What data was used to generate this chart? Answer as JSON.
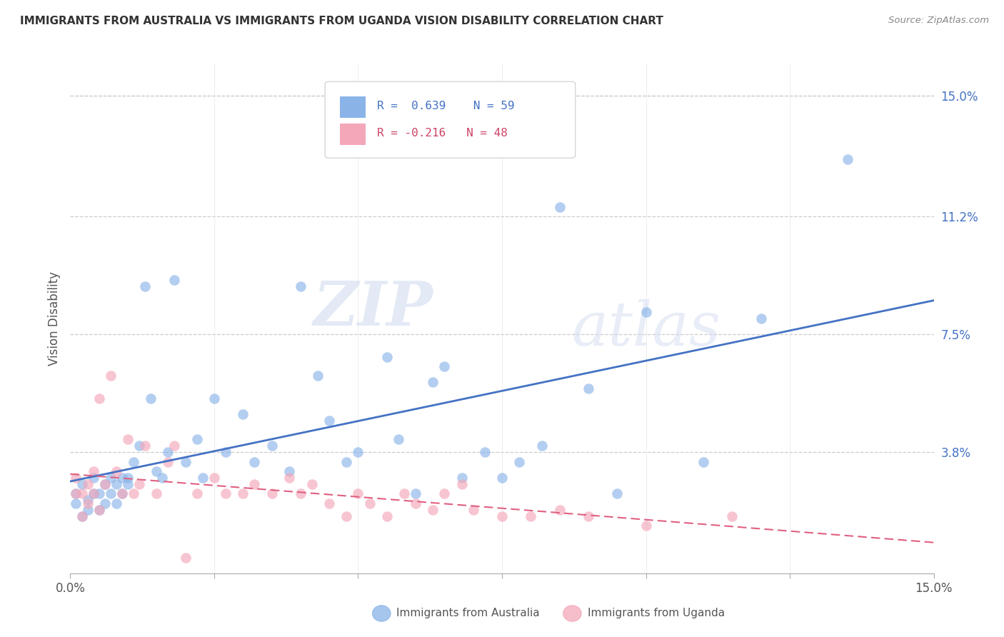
{
  "title": "IMMIGRANTS FROM AUSTRALIA VS IMMIGRANTS FROM UGANDA VISION DISABILITY CORRELATION CHART",
  "source": "Source: ZipAtlas.com",
  "ylabel": "Vision Disability",
  "ytick_labels": [
    "15.0%",
    "11.2%",
    "7.5%",
    "3.8%"
  ],
  "ytick_values": [
    0.15,
    0.112,
    0.075,
    0.038
  ],
  "xlim": [
    0.0,
    0.15
  ],
  "ylim": [
    0.0,
    0.16
  ],
  "legend_r_australia": "R =  0.639",
  "legend_n_australia": "N = 59",
  "legend_r_uganda": "R = -0.216",
  "legend_n_uganda": "N = 48",
  "color_australia": "#8ab4e8",
  "color_uganda": "#f4a7b9",
  "line_color_australia": "#4472c4",
  "line_color_uganda": "#e06080",
  "watermark_zip": "ZIP",
  "watermark_atlas": "atlas",
  "australia_x": [
    0.001,
    0.001,
    0.002,
    0.002,
    0.003,
    0.003,
    0.004,
    0.004,
    0.005,
    0.005,
    0.006,
    0.006,
    0.007,
    0.007,
    0.008,
    0.008,
    0.009,
    0.009,
    0.01,
    0.01,
    0.011,
    0.012,
    0.013,
    0.014,
    0.015,
    0.016,
    0.017,
    0.018,
    0.02,
    0.022,
    0.023,
    0.025,
    0.027,
    0.03,
    0.032,
    0.035,
    0.038,
    0.04,
    0.043,
    0.045,
    0.048,
    0.05,
    0.055,
    0.057,
    0.06,
    0.063,
    0.065,
    0.068,
    0.072,
    0.075,
    0.078,
    0.082,
    0.085,
    0.09,
    0.095,
    0.1,
    0.11,
    0.12,
    0.135
  ],
  "australia_y": [
    0.022,
    0.025,
    0.018,
    0.028,
    0.02,
    0.023,
    0.025,
    0.03,
    0.02,
    0.025,
    0.028,
    0.022,
    0.025,
    0.03,
    0.028,
    0.022,
    0.03,
    0.025,
    0.03,
    0.028,
    0.035,
    0.04,
    0.09,
    0.055,
    0.032,
    0.03,
    0.038,
    0.092,
    0.035,
    0.042,
    0.03,
    0.055,
    0.038,
    0.05,
    0.035,
    0.04,
    0.032,
    0.09,
    0.062,
    0.048,
    0.035,
    0.038,
    0.068,
    0.042,
    0.025,
    0.06,
    0.065,
    0.03,
    0.038,
    0.03,
    0.035,
    0.04,
    0.115,
    0.058,
    0.025,
    0.082,
    0.035,
    0.08,
    0.13
  ],
  "uganda_x": [
    0.001,
    0.001,
    0.002,
    0.002,
    0.003,
    0.003,
    0.004,
    0.004,
    0.005,
    0.005,
    0.006,
    0.007,
    0.008,
    0.009,
    0.01,
    0.011,
    0.012,
    0.013,
    0.015,
    0.017,
    0.018,
    0.02,
    0.022,
    0.025,
    0.027,
    0.03,
    0.032,
    0.035,
    0.038,
    0.04,
    0.042,
    0.045,
    0.048,
    0.05,
    0.052,
    0.055,
    0.058,
    0.06,
    0.063,
    0.065,
    0.068,
    0.07,
    0.075,
    0.08,
    0.085,
    0.09,
    0.1,
    0.115
  ],
  "uganda_y": [
    0.025,
    0.03,
    0.018,
    0.025,
    0.022,
    0.028,
    0.032,
    0.025,
    0.02,
    0.055,
    0.028,
    0.062,
    0.032,
    0.025,
    0.042,
    0.025,
    0.028,
    0.04,
    0.025,
    0.035,
    0.04,
    0.005,
    0.025,
    0.03,
    0.025,
    0.025,
    0.028,
    0.025,
    0.03,
    0.025,
    0.028,
    0.022,
    0.018,
    0.025,
    0.022,
    0.018,
    0.025,
    0.022,
    0.02,
    0.025,
    0.028,
    0.02,
    0.018,
    0.018,
    0.02,
    0.018,
    0.015,
    0.018
  ]
}
